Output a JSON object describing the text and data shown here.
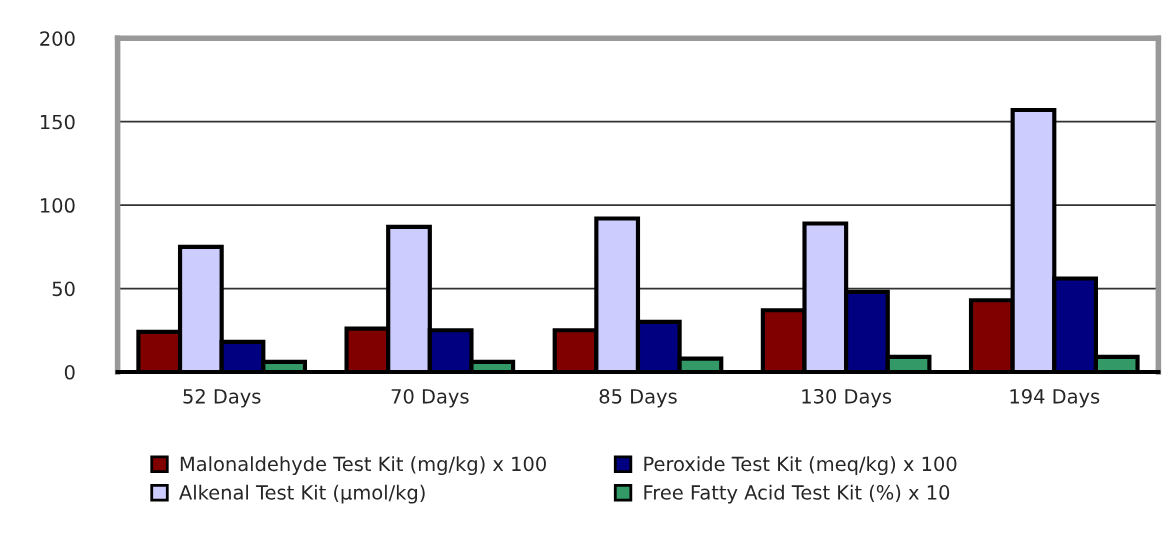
{
  "chart_data": {
    "type": "bar",
    "categories": [
      "52 Days",
      "70 Days",
      "85 Days",
      "130 Days",
      "194 Days"
    ],
    "series": [
      {
        "name": "Malonaldehyde Test Kit (mg/kg) x 100",
        "color": "#800000",
        "values": [
          24,
          26,
          25,
          37,
          43
        ]
      },
      {
        "name": "Alkenal Test Kit (µmol/kg)",
        "color": "#ccccff",
        "values": [
          75,
          87,
          92,
          89,
          157
        ]
      },
      {
        "name": "Peroxide Test Kit (meq/kg) x 100",
        "color": "#000080",
        "values": [
          18,
          25,
          30,
          48,
          56
        ]
      },
      {
        "name": "Free Fatty Acid Test Kit (%) x 10",
        "color": "#339966",
        "values": [
          6,
          6,
          8,
          9,
          9
        ]
      }
    ],
    "ylim": [
      0,
      200
    ],
    "yticks": [
      0,
      50,
      100,
      150,
      200
    ],
    "grid": "y",
    "legend": "bottom"
  }
}
